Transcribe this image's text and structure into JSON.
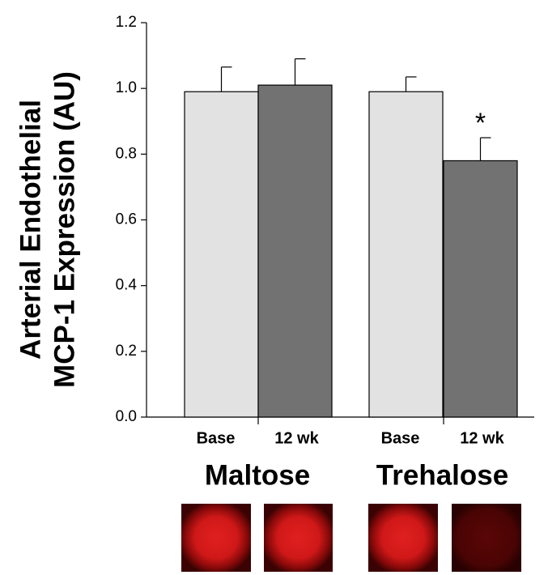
{
  "chart_data": {
    "type": "bar",
    "ylabel": [
      "Arterial Endothelial",
      "MCP-1 Expression (AU)"
    ],
    "categories": [
      "Base",
      "12 wk",
      "Base",
      "12 wk"
    ],
    "groups": [
      "Maltose",
      "Trehalose"
    ],
    "values": [
      0.99,
      1.01,
      0.99,
      0.78
    ],
    "errors": [
      0.075,
      0.08,
      0.045,
      0.07
    ],
    "colors": [
      "#e2e2e2",
      "#727272",
      "#e2e2e2",
      "#727272"
    ],
    "annotation": "*",
    "ylim": [
      0,
      1.2
    ],
    "yticks": [
      {
        "value": 0,
        "label": "0.0"
      },
      0.2,
      0.4,
      0.6,
      0.8,
      {
        "value": 1,
        "label": "1.0"
      },
      1.2
    ]
  }
}
